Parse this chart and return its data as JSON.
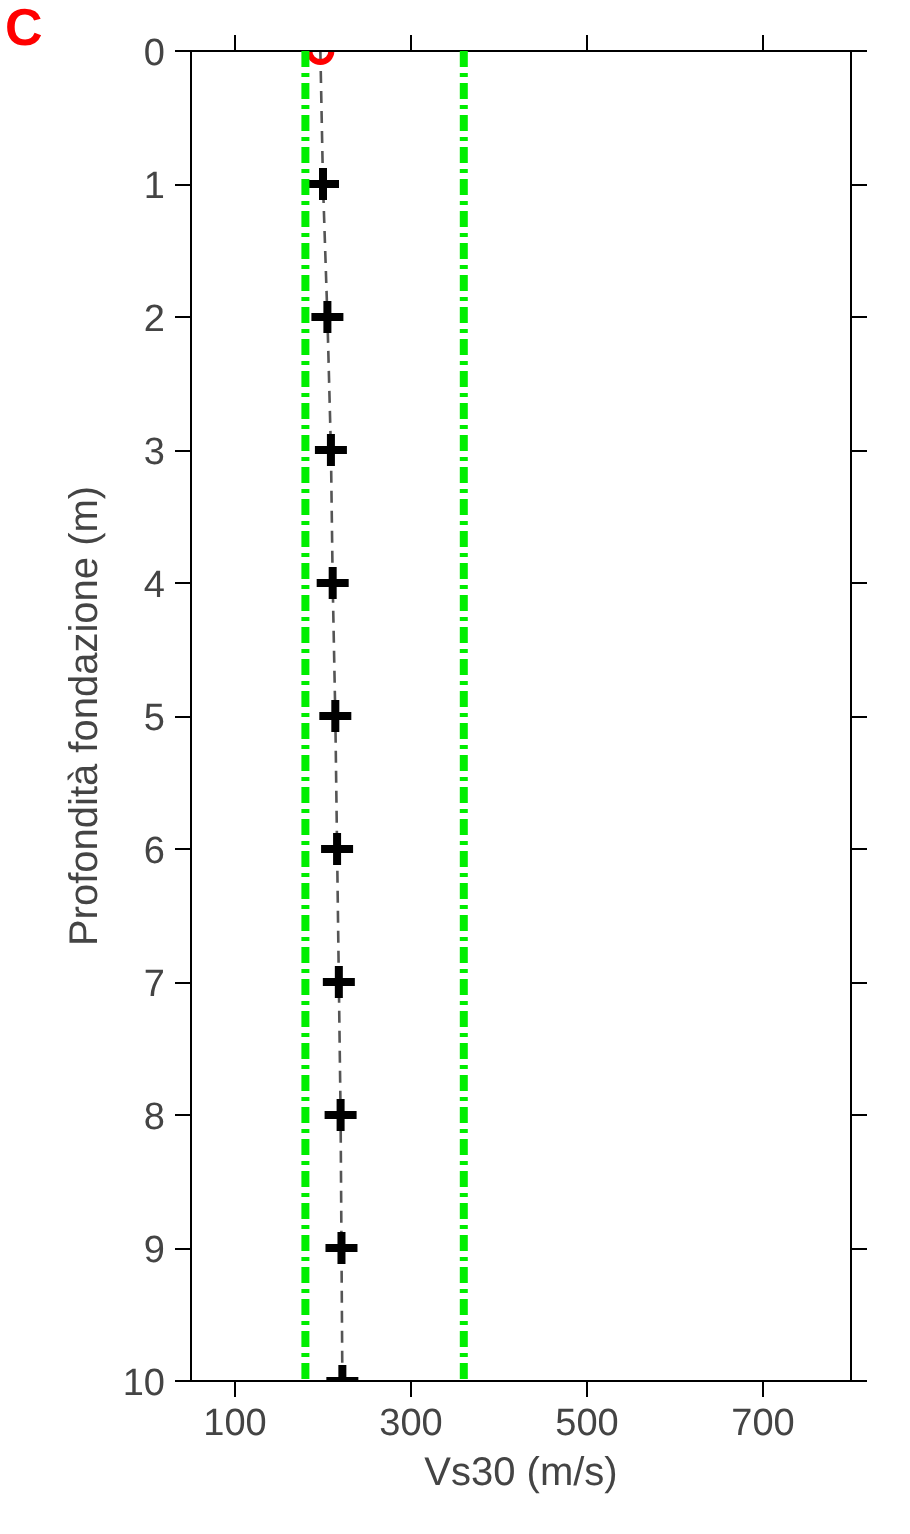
{
  "chart_data": {
    "type": "line",
    "xlabel": "Vs30 (m/s)",
    "ylabel": "Profondità fondazione (m)",
    "xlim": [
      50,
      800
    ],
    "xticks": [
      100,
      300,
      500,
      700
    ],
    "ylim": [
      10,
      0
    ],
    "yticks": [
      0,
      1,
      2,
      3,
      4,
      5,
      6,
      7,
      8,
      9,
      10
    ],
    "grid": false,
    "series": [
      {
        "type": "line",
        "color": "#555555",
        "line_style": "dashed",
        "marker": "none",
        "x": [
          197,
          200,
          205,
          209,
          211,
          214,
          216,
          218,
          220,
          221,
          222
        ],
        "values": [
          0,
          1,
          2,
          3,
          4,
          5,
          6,
          7,
          8,
          9,
          10
        ]
      },
      {
        "type": "scatter",
        "color": "#000000",
        "marker": "cross",
        "x": [
          200,
          205,
          209,
          211,
          214,
          216,
          218,
          220,
          221,
          222
        ],
        "values": [
          1,
          2,
          3,
          4,
          5,
          6,
          7,
          8,
          9,
          10
        ]
      },
      {
        "type": "scatter",
        "color": "#ff0000",
        "marker": "circle",
        "x": [
          197
        ],
        "values": [
          0
        ]
      }
    ],
    "ref_lines": [
      {
        "axis": "x",
        "value": 180,
        "label": null,
        "color": "#00ee00",
        "line_style": "dashdot"
      },
      {
        "axis": "x",
        "value": 360,
        "label": null,
        "color": "#00ee00",
        "line_style": "dashdot"
      }
    ],
    "annotations": [
      "C"
    ]
  }
}
